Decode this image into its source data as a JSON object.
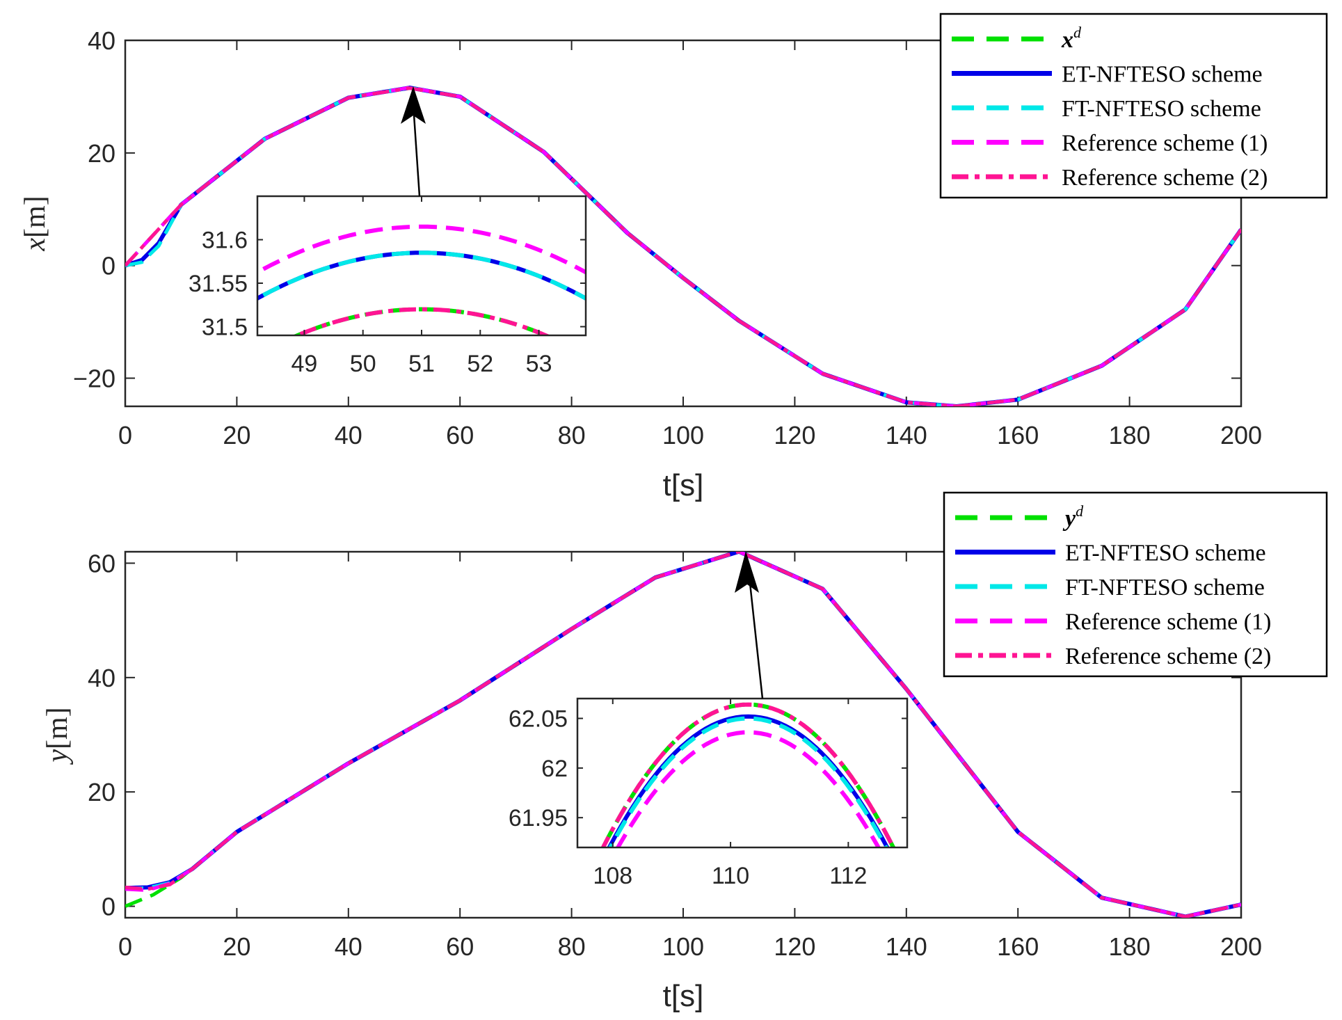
{
  "chart_data": [
    {
      "type": "line",
      "panel": "top",
      "xlabel": "t[s]",
      "ylabel_var": "x",
      "ylabel_unit": "[m]",
      "xlim": [
        0,
        200
      ],
      "ylim": [
        -25,
        40
      ],
      "xticks": [
        0,
        20,
        40,
        60,
        80,
        100,
        120,
        140,
        160,
        180,
        200
      ],
      "yticks": [
        -20,
        0,
        20,
        40
      ],
      "ytick_labels": [
        "−20",
        "0",
        "20",
        "40"
      ],
      "legend_position": "top-right",
      "series": [
        {
          "name": "x",
          "sup": "d",
          "style": "dashed",
          "color": "#00e000",
          "x": [
            0,
            10,
            25,
            40,
            51,
            60,
            75,
            90,
            100,
            110,
            125,
            140,
            149,
            160,
            175,
            190,
            200
          ],
          "y": [
            0,
            10.8,
            22.5,
            29.8,
            31.52,
            30.0,
            20.2,
            5.8,
            -2.2,
            -9.8,
            -19.2,
            -24.3,
            -25.0,
            -23.8,
            -17.8,
            -7.8,
            6.4
          ]
        },
        {
          "name": "ET-NFTESO scheme",
          "style": "solid",
          "color": "#0000e8",
          "x": [
            0,
            3,
            6,
            10,
            25,
            40,
            51,
            60,
            75,
            90,
            100,
            110,
            125,
            140,
            149,
            160,
            175,
            190,
            200
          ],
          "y": [
            0,
            1.0,
            4.0,
            10.8,
            22.5,
            29.8,
            31.58,
            30.0,
            20.2,
            5.8,
            -2.2,
            -9.8,
            -19.2,
            -24.3,
            -25.0,
            -23.8,
            -17.8,
            -7.8,
            6.4
          ]
        },
        {
          "name": "FT-NFTESO scheme",
          "style": "dashed",
          "color": "#00e8e8",
          "x": [
            0,
            3,
            6,
            10,
            25,
            40,
            51,
            60,
            75,
            90,
            100,
            110,
            125,
            140,
            149,
            160,
            175,
            190,
            200
          ],
          "y": [
            0,
            0.6,
            3.5,
            10.8,
            22.5,
            29.8,
            31.58,
            30.0,
            20.2,
            5.8,
            -2.2,
            -9.8,
            -19.2,
            -24.3,
            -25.0,
            -23.8,
            -17.8,
            -7.8,
            6.4
          ]
        },
        {
          "name": "Reference scheme (1)",
          "style": "dashed",
          "color": "#ff00ff",
          "x": [
            0,
            10,
            25,
            40,
            51,
            60,
            75,
            90,
            100,
            110,
            125,
            140,
            149,
            160,
            175,
            190,
            200
          ],
          "y": [
            0,
            10.8,
            22.5,
            29.8,
            31.61,
            30.0,
            20.2,
            5.8,
            -2.2,
            -9.8,
            -19.2,
            -24.3,
            -25.0,
            -23.8,
            -17.8,
            -7.8,
            6.4
          ]
        },
        {
          "name": "Reference scheme (2)",
          "style": "dashdot",
          "color": "#ff1493",
          "x": [
            0,
            10,
            25,
            40,
            51,
            60,
            75,
            90,
            100,
            110,
            125,
            140,
            149,
            160,
            175,
            190,
            200
          ],
          "y": [
            0,
            10.8,
            22.5,
            29.8,
            31.52,
            30.0,
            20.2,
            5.8,
            -2.2,
            -9.8,
            -19.2,
            -24.3,
            -25.0,
            -23.8,
            -17.8,
            -7.8,
            6.4
          ]
        }
      ],
      "inset": {
        "xlim": [
          48.2,
          53.8
        ],
        "ylim": [
          31.49,
          31.65
        ],
        "xticks": [
          49,
          50,
          51,
          52,
          53
        ],
        "yticks": [
          31.5,
          31.55,
          31.6
        ],
        "ytick_labels": [
          "31.5",
          "31.55",
          "31.6"
        ],
        "peak_t": 51,
        "curvature": 0.0067,
        "peaks": {
          "x^d": 31.52,
          "ET-NFTESO scheme": 31.585,
          "FT-NFTESO scheme": 31.585,
          "Reference scheme (1)": 31.615,
          "Reference scheme (2)": 31.52
        },
        "arrow_to": [
          51,
          31.6
        ]
      }
    },
    {
      "type": "line",
      "panel": "bottom",
      "xlabel": "t[s]",
      "ylabel_var": "y",
      "ylabel_unit": "[m]",
      "xlim": [
        0,
        200
      ],
      "ylim": [
        -2,
        62
      ],
      "xticks": [
        0,
        20,
        40,
        60,
        80,
        100,
        120,
        140,
        160,
        180,
        200
      ],
      "yticks": [
        0,
        20,
        40,
        60
      ],
      "ytick_labels": [
        "0",
        "20",
        "40",
        "60"
      ],
      "legend_position": "top-right",
      "series": [
        {
          "name": "y",
          "sup": "d",
          "style": "dashed",
          "color": "#00e000",
          "x": [
            0,
            5,
            10,
            20,
            40,
            60,
            80,
            95,
            110,
            125,
            140,
            160,
            175,
            190,
            200
          ],
          "y": [
            0,
            2.0,
            5.0,
            13.0,
            25.0,
            36.0,
            48.5,
            57.5,
            62.05,
            55.5,
            38.0,
            13.0,
            1.5,
            -1.8,
            0.3
          ]
        },
        {
          "name": "ET-NFTESO scheme",
          "style": "solid",
          "color": "#0000e8",
          "x": [
            0,
            4,
            8,
            12,
            20,
            40,
            60,
            80,
            95,
            110,
            125,
            140,
            160,
            175,
            190,
            200
          ],
          "y": [
            3.2,
            3.3,
            4.2,
            6.5,
            13.0,
            25.0,
            36.0,
            48.5,
            57.5,
            62.04,
            55.5,
            38.0,
            13.0,
            1.5,
            -1.8,
            0.3
          ]
        },
        {
          "name": "FT-NFTESO scheme",
          "style": "dashed",
          "color": "#00e8e8",
          "x": [
            0,
            4,
            8,
            12,
            20,
            40,
            60,
            80,
            95,
            110,
            125,
            140,
            160,
            175,
            190,
            200
          ],
          "y": [
            3.1,
            3.2,
            4.1,
            6.5,
            13.0,
            25.0,
            36.0,
            48.5,
            57.5,
            62.04,
            55.5,
            38.0,
            13.0,
            1.5,
            -1.8,
            0.3
          ]
        },
        {
          "name": "Reference scheme (1)",
          "style": "dashed",
          "color": "#ff00ff",
          "x": [
            0,
            4,
            8,
            12,
            20,
            40,
            60,
            80,
            95,
            110,
            125,
            140,
            160,
            175,
            190,
            200
          ],
          "y": [
            3.0,
            2.8,
            4.0,
            6.5,
            13.0,
            25.0,
            36.0,
            48.5,
            57.5,
            62.03,
            55.5,
            38.0,
            13.0,
            1.5,
            -1.8,
            0.3
          ]
        },
        {
          "name": "Reference scheme (2)",
          "style": "dashdot",
          "color": "#ff1493",
          "x": [
            0,
            4,
            8,
            12,
            20,
            40,
            60,
            80,
            95,
            110,
            125,
            140,
            160,
            175,
            190,
            200
          ],
          "y": [
            3.3,
            3.0,
            3.8,
            6.5,
            13.0,
            25.0,
            36.0,
            48.5,
            57.5,
            62.05,
            55.5,
            38.0,
            13.0,
            1.5,
            -1.8,
            0.3
          ]
        }
      ],
      "inset": {
        "xlim": [
          107.4,
          113.0
        ],
        "ylim": [
          61.92,
          62.07
        ],
        "xticks": [
          108,
          110,
          112
        ],
        "yticks": [
          61.95,
          62,
          62.05
        ],
        "ytick_labels": [
          "61.95",
          "62",
          "62.05"
        ],
        "peak_t": 110.3,
        "curvature": 0.0237,
        "peaks": {
          "y^d": 62.064,
          "ET-NFTESO scheme": 62.052,
          "FT-NFTESO scheme": 62.05,
          "Reference scheme (1)": 62.036,
          "Reference scheme (2)": 62.064
        },
        "arrow_to": [
          110.3,
          62.05
        ]
      }
    }
  ]
}
